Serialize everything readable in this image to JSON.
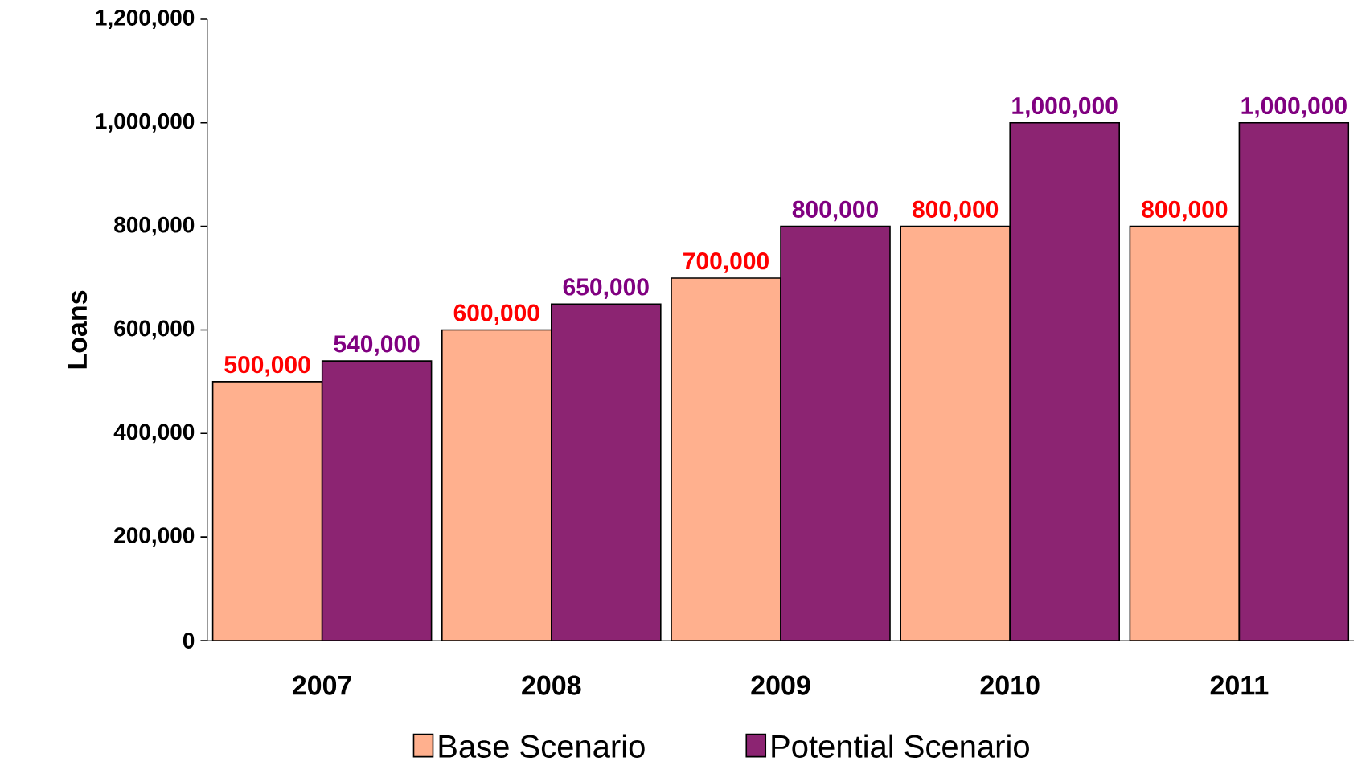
{
  "chart_data": {
    "type": "bar",
    "ylabel": "Loans",
    "categories": [
      "2007",
      "2008",
      "2009",
      "2010",
      "2011"
    ],
    "series": [
      {
        "name": "Base Scenario",
        "color": "#ffb08e",
        "values": [
          500000,
          600000,
          700000,
          800000,
          800000
        ],
        "value_labels": [
          "500,000",
          "600,000",
          "700,000",
          "800,000",
          "800,000"
        ]
      },
      {
        "name": "Potential Scenario",
        "color": "#8c2472",
        "values": [
          540000,
          650000,
          800000,
          1000000,
          1000000
        ],
        "value_labels": [
          "540,000",
          "650,000",
          "800,000",
          "1,000,000",
          "1,000,000"
        ]
      }
    ],
    "ylim": [
      0,
      1200000
    ],
    "yticks": [
      {
        "value": 0,
        "label": "0"
      },
      {
        "value": 200000,
        "label": "200,000"
      },
      {
        "value": 400000,
        "label": "400,000"
      },
      {
        "value": 600000,
        "label": "600,000"
      },
      {
        "value": 800000,
        "label": "800,000"
      },
      {
        "value": 1000000,
        "label": "1,000,000"
      },
      {
        "value": 1200000,
        "label": "1,200,000"
      }
    ],
    "grid": false,
    "legend": "bottom"
  }
}
